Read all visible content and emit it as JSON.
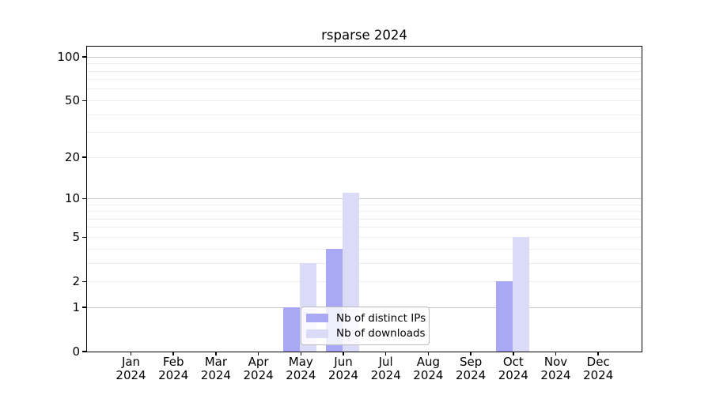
{
  "chart_data": {
    "type": "bar",
    "title": "rsparse 2024",
    "categories": [
      "Jan 2024",
      "Feb 2024",
      "Mar 2024",
      "Apr 2024",
      "May 2024",
      "Jun 2024",
      "Jul 2024",
      "Aug 2024",
      "Sep 2024",
      "Oct 2024",
      "Nov 2024",
      "Dec 2024"
    ],
    "series": [
      {
        "name": "Nb of distinct IPs",
        "color": "#a8a8f4",
        "values": [
          0,
          0,
          0,
          0,
          1,
          4,
          0,
          0,
          0,
          2,
          0,
          0
        ]
      },
      {
        "name": "Nb of downloads",
        "color": "#dbdbf8",
        "values": [
          0,
          0,
          0,
          0,
          3,
          11,
          0,
          0,
          0,
          5,
          0,
          0
        ]
      }
    ],
    "xlabel": "",
    "ylabel": "",
    "yscale": "log1p",
    "yticks": [
      0,
      1,
      2,
      5,
      10,
      20,
      50,
      100
    ],
    "ylim": [
      0,
      118
    ],
    "grid": true,
    "legend_position": "lower center"
  }
}
